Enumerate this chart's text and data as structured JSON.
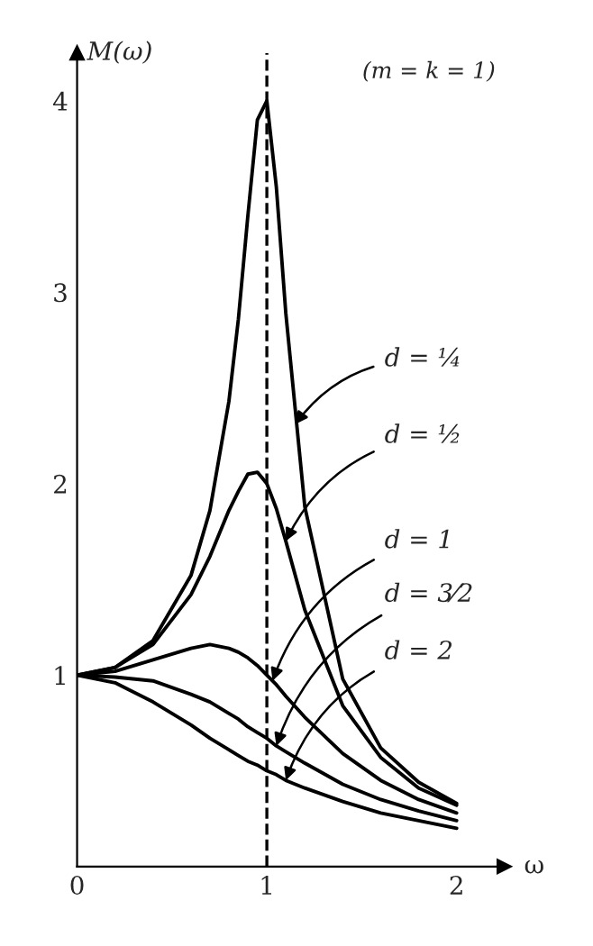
{
  "chart_data": {
    "type": "line",
    "xlabel": "ω",
    "ylabel": "M(ω)",
    "x": [
      0,
      0.2,
      0.4,
      0.6,
      0.7,
      0.8,
      0.85,
      0.9,
      0.95,
      1.0,
      1.05,
      1.1,
      1.2,
      1.4,
      1.6,
      1.8,
      2.0
    ],
    "series": [
      {
        "color": "#000000",
        "values": [
          1,
          1.04,
          1.18,
          1.52,
          1.86,
          2.43,
          2.86,
          3.4,
          3.9,
          4.0,
          3.55,
          2.89,
          1.88,
          0.98,
          0.62,
          0.44,
          0.33
        ]
      },
      {
        "color": "#000000",
        "values": [
          1,
          1.04,
          1.16,
          1.42,
          1.62,
          1.86,
          1.96,
          2.05,
          2.06,
          2.0,
          1.87,
          1.7,
          1.34,
          0.84,
          0.57,
          0.41,
          0.32
        ]
      },
      {
        "color": "#000000",
        "values": [
          1,
          1.02,
          1.08,
          1.14,
          1.16,
          1.14,
          1.12,
          1.09,
          1.05,
          1.0,
          0.95,
          0.89,
          0.78,
          0.59,
          0.45,
          0.35,
          0.28
        ]
      },
      {
        "color": "#000000",
        "values": [
          1,
          0.99,
          0.97,
          0.9,
          0.86,
          0.8,
          0.77,
          0.73,
          0.7,
          0.67,
          0.63,
          0.6,
          0.54,
          0.43,
          0.35,
          0.29,
          0.24
        ]
      },
      {
        "color": "#000000",
        "values": [
          1,
          0.96,
          0.86,
          0.74,
          0.67,
          0.61,
          0.58,
          0.55,
          0.53,
          0.5,
          0.48,
          0.45,
          0.41,
          0.34,
          0.28,
          0.24,
          0.2
        ]
      }
    ],
    "xlim": [
      0,
      2.25
    ],
    "ylim": [
      0,
      4.25
    ],
    "xticks": [
      0,
      1,
      2
    ],
    "yticks": [
      1,
      2,
      3,
      4
    ],
    "ref_lines": [
      {
        "axis": "x",
        "value": 1,
        "color": "#000000",
        "line_style": "dashed"
      }
    ],
    "annotations": [
      "(m = k = 1)",
      {
        "text": "d = ¼",
        "x": 1.15,
        "y": 2.31
      },
      {
        "text": "d = ½",
        "x": 1.1,
        "y": 1.7
      },
      {
        "text": "d = 1",
        "x": 1.03,
        "y": 0.97
      },
      {
        "text": "d = 3⁄2",
        "x": 1.05,
        "y": 0.63
      },
      {
        "text": "d = 2",
        "x": 1.1,
        "y": 0.45
      }
    ],
    "grid": false,
    "legend": false,
    "marker": "none",
    "line_style": "solid"
  }
}
